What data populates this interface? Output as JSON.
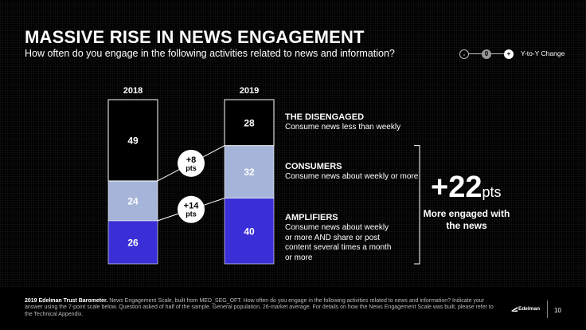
{
  "header": {
    "title": "MASSIVE RISE IN NEWS ENGAGEMENT",
    "subtitle": "How often do you engage in the following activities related to news and information?"
  },
  "legend": {
    "minus_symbol": "-",
    "zero_symbol": "0",
    "plus_symbol": "+",
    "label": "Y-to-Y Change"
  },
  "chart_data": {
    "type": "bar",
    "stacked": true,
    "categories": [
      "2018",
      "2019"
    ],
    "series": [
      {
        "name": "AMPLIFIERS",
        "values": [
          26,
          40
        ],
        "color": "#3a2ed6"
      },
      {
        "name": "CONSUMERS",
        "values": [
          24,
          32
        ],
        "color": "#a5b4d8"
      },
      {
        "name": "THE DISENGAGED",
        "values": [
          49,
          28
        ],
        "color": "#000000"
      }
    ],
    "changes": [
      {
        "text": "+8",
        "unit": "pts",
        "series": "CONSUMERS"
      },
      {
        "text": "+14",
        "unit": "pts",
        "series": "AMPLIFIERS"
      }
    ],
    "ylim": [
      0,
      100
    ]
  },
  "categories_info": [
    {
      "title": "THE DISENGAGED",
      "desc": "Consume news less than weekly"
    },
    {
      "title": "CONSUMERS",
      "desc": "Consume news about weekly or more"
    },
    {
      "title": "AMPLIFIERS",
      "desc": "Consume news about weekly or more AND share or post content several times a month or more"
    }
  ],
  "summary": {
    "value": "+22",
    "unit": "pts",
    "label": "More engaged with the news"
  },
  "footer": {
    "source_bold": "2019 Edelman Trust Barometer.",
    "source_text": " News Engagement Scale, built from MED_SEG_OFT. How often do you engage in the following activities related to news and information? Indicate your answer using the 7-point scale below. Question asked of half of the sample. General population, 26-market average. For details on how the News Engagement Scale was built, please refer to the Technical Appendix.",
    "brand": "Edelman",
    "page": "10"
  }
}
